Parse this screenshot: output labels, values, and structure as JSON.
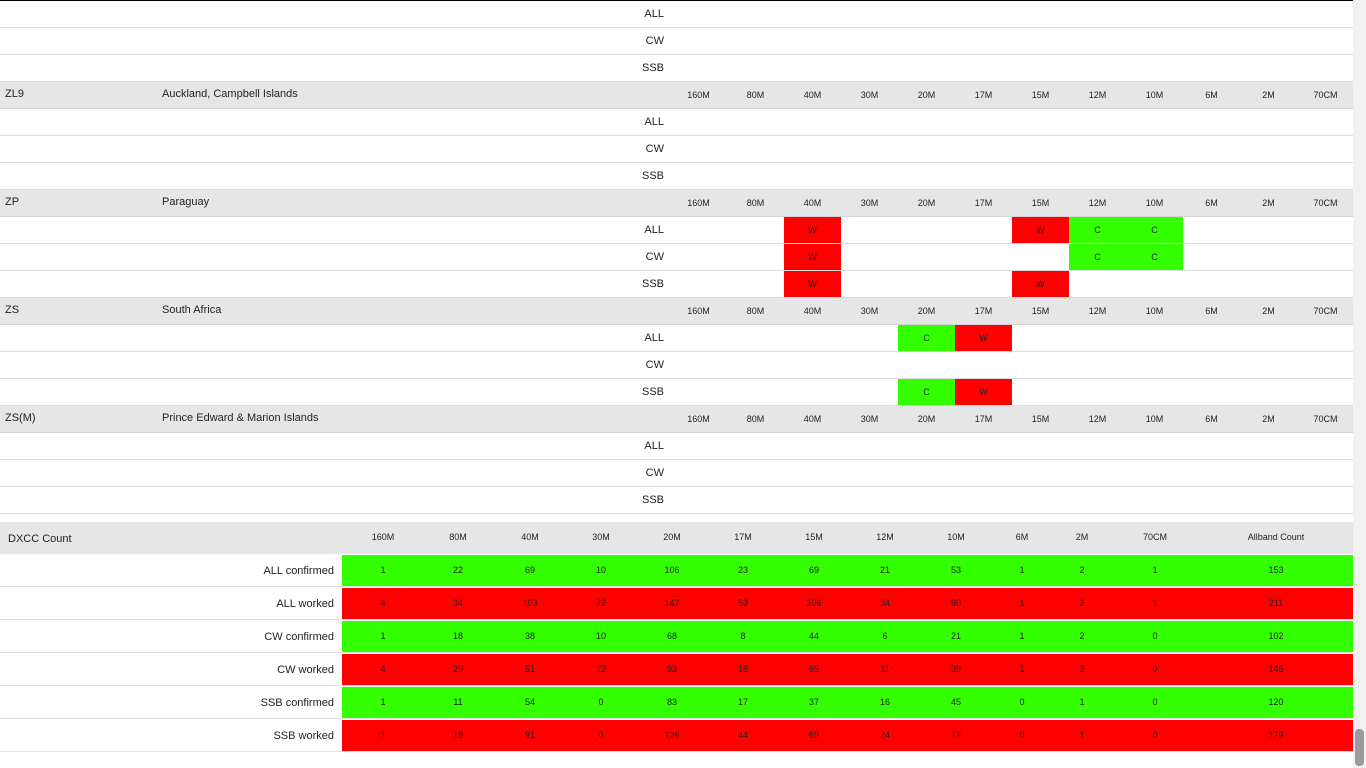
{
  "bands": [
    "160M",
    "80M",
    "40M",
    "30M",
    "20M",
    "17M",
    "15M",
    "12M",
    "10M",
    "6M",
    "2M",
    "70CM"
  ],
  "entities": [
    {
      "prefix": "",
      "name": "",
      "header": false,
      "modes": [
        {
          "mode": "ALL",
          "cells": {}
        },
        {
          "mode": "CW",
          "cells": {}
        },
        {
          "mode": "SSB",
          "cells": {}
        }
      ]
    },
    {
      "prefix": "ZL9",
      "name": "Auckland, Campbell Islands",
      "header": true,
      "modes": [
        {
          "mode": "ALL",
          "cells": {}
        },
        {
          "mode": "CW",
          "cells": {}
        },
        {
          "mode": "SSB",
          "cells": {}
        }
      ]
    },
    {
      "prefix": "ZP",
      "name": "Paraguay",
      "header": true,
      "modes": [
        {
          "mode": "ALL",
          "cells": {
            "40M": "W",
            "15M": "W",
            "12M": "C",
            "10M": "C"
          }
        },
        {
          "mode": "CW",
          "cells": {
            "40M": "W",
            "12M": "C",
            "10M": "C"
          }
        },
        {
          "mode": "SSB",
          "cells": {
            "40M": "W",
            "15M": "W"
          }
        }
      ]
    },
    {
      "prefix": "ZS",
      "name": "South Africa",
      "header": true,
      "modes": [
        {
          "mode": "ALL",
          "cells": {
            "20M": "C",
            "17M": "W"
          }
        },
        {
          "mode": "CW",
          "cells": {}
        },
        {
          "mode": "SSB",
          "cells": {
            "20M": "C",
            "17M": "W"
          }
        }
      ]
    },
    {
      "prefix": "ZS(M)",
      "name": "Prince Edward & Marion Islands",
      "header": true,
      "modes": [
        {
          "mode": "ALL",
          "cells": {}
        },
        {
          "mode": "CW",
          "cells": {}
        },
        {
          "mode": "SSB",
          "cells": {}
        }
      ]
    }
  ],
  "summary": {
    "title": "DXCC Count",
    "allband_label": "Allband Count",
    "rows": [
      {
        "label": "ALL confirmed",
        "status": "green",
        "values": [
          "1",
          "22",
          "69",
          "10",
          "106",
          "23",
          "69",
          "21",
          "53",
          "1",
          "2",
          "1"
        ],
        "allband": "153"
      },
      {
        "label": "ALL worked",
        "status": "red",
        "values": [
          "4",
          "34",
          "103",
          "22",
          "147",
          "53",
          "106",
          "34",
          "90",
          "1",
          "2",
          "1"
        ],
        "allband": "211"
      },
      {
        "label": "CW confirmed",
        "status": "green",
        "values": [
          "1",
          "18",
          "38",
          "10",
          "68",
          "8",
          "44",
          "6",
          "21",
          "1",
          "2",
          "0"
        ],
        "allband": "102"
      },
      {
        "label": "CW worked",
        "status": "red",
        "values": [
          "4",
          "29",
          "51",
          "22",
          "93",
          "18",
          "65",
          "11",
          "39",
          "1",
          "2",
          "0"
        ],
        "allband": "145"
      },
      {
        "label": "SSB confirmed",
        "status": "green",
        "values": [
          "1",
          "11",
          "54",
          "0",
          "83",
          "17",
          "37",
          "16",
          "45",
          "0",
          "1",
          "0"
        ],
        "allband": "120"
      },
      {
        "label": "SSB worked",
        "status": "red",
        "values": [
          "1",
          "19",
          "91",
          "0",
          "126",
          "44",
          "69",
          "24",
          "72",
          "0",
          "1",
          "0"
        ],
        "allband": "179"
      }
    ]
  },
  "colors": {
    "worked": "#ff0000",
    "confirmed": "#33ff00",
    "header_bg": "#e6e6e6"
  }
}
